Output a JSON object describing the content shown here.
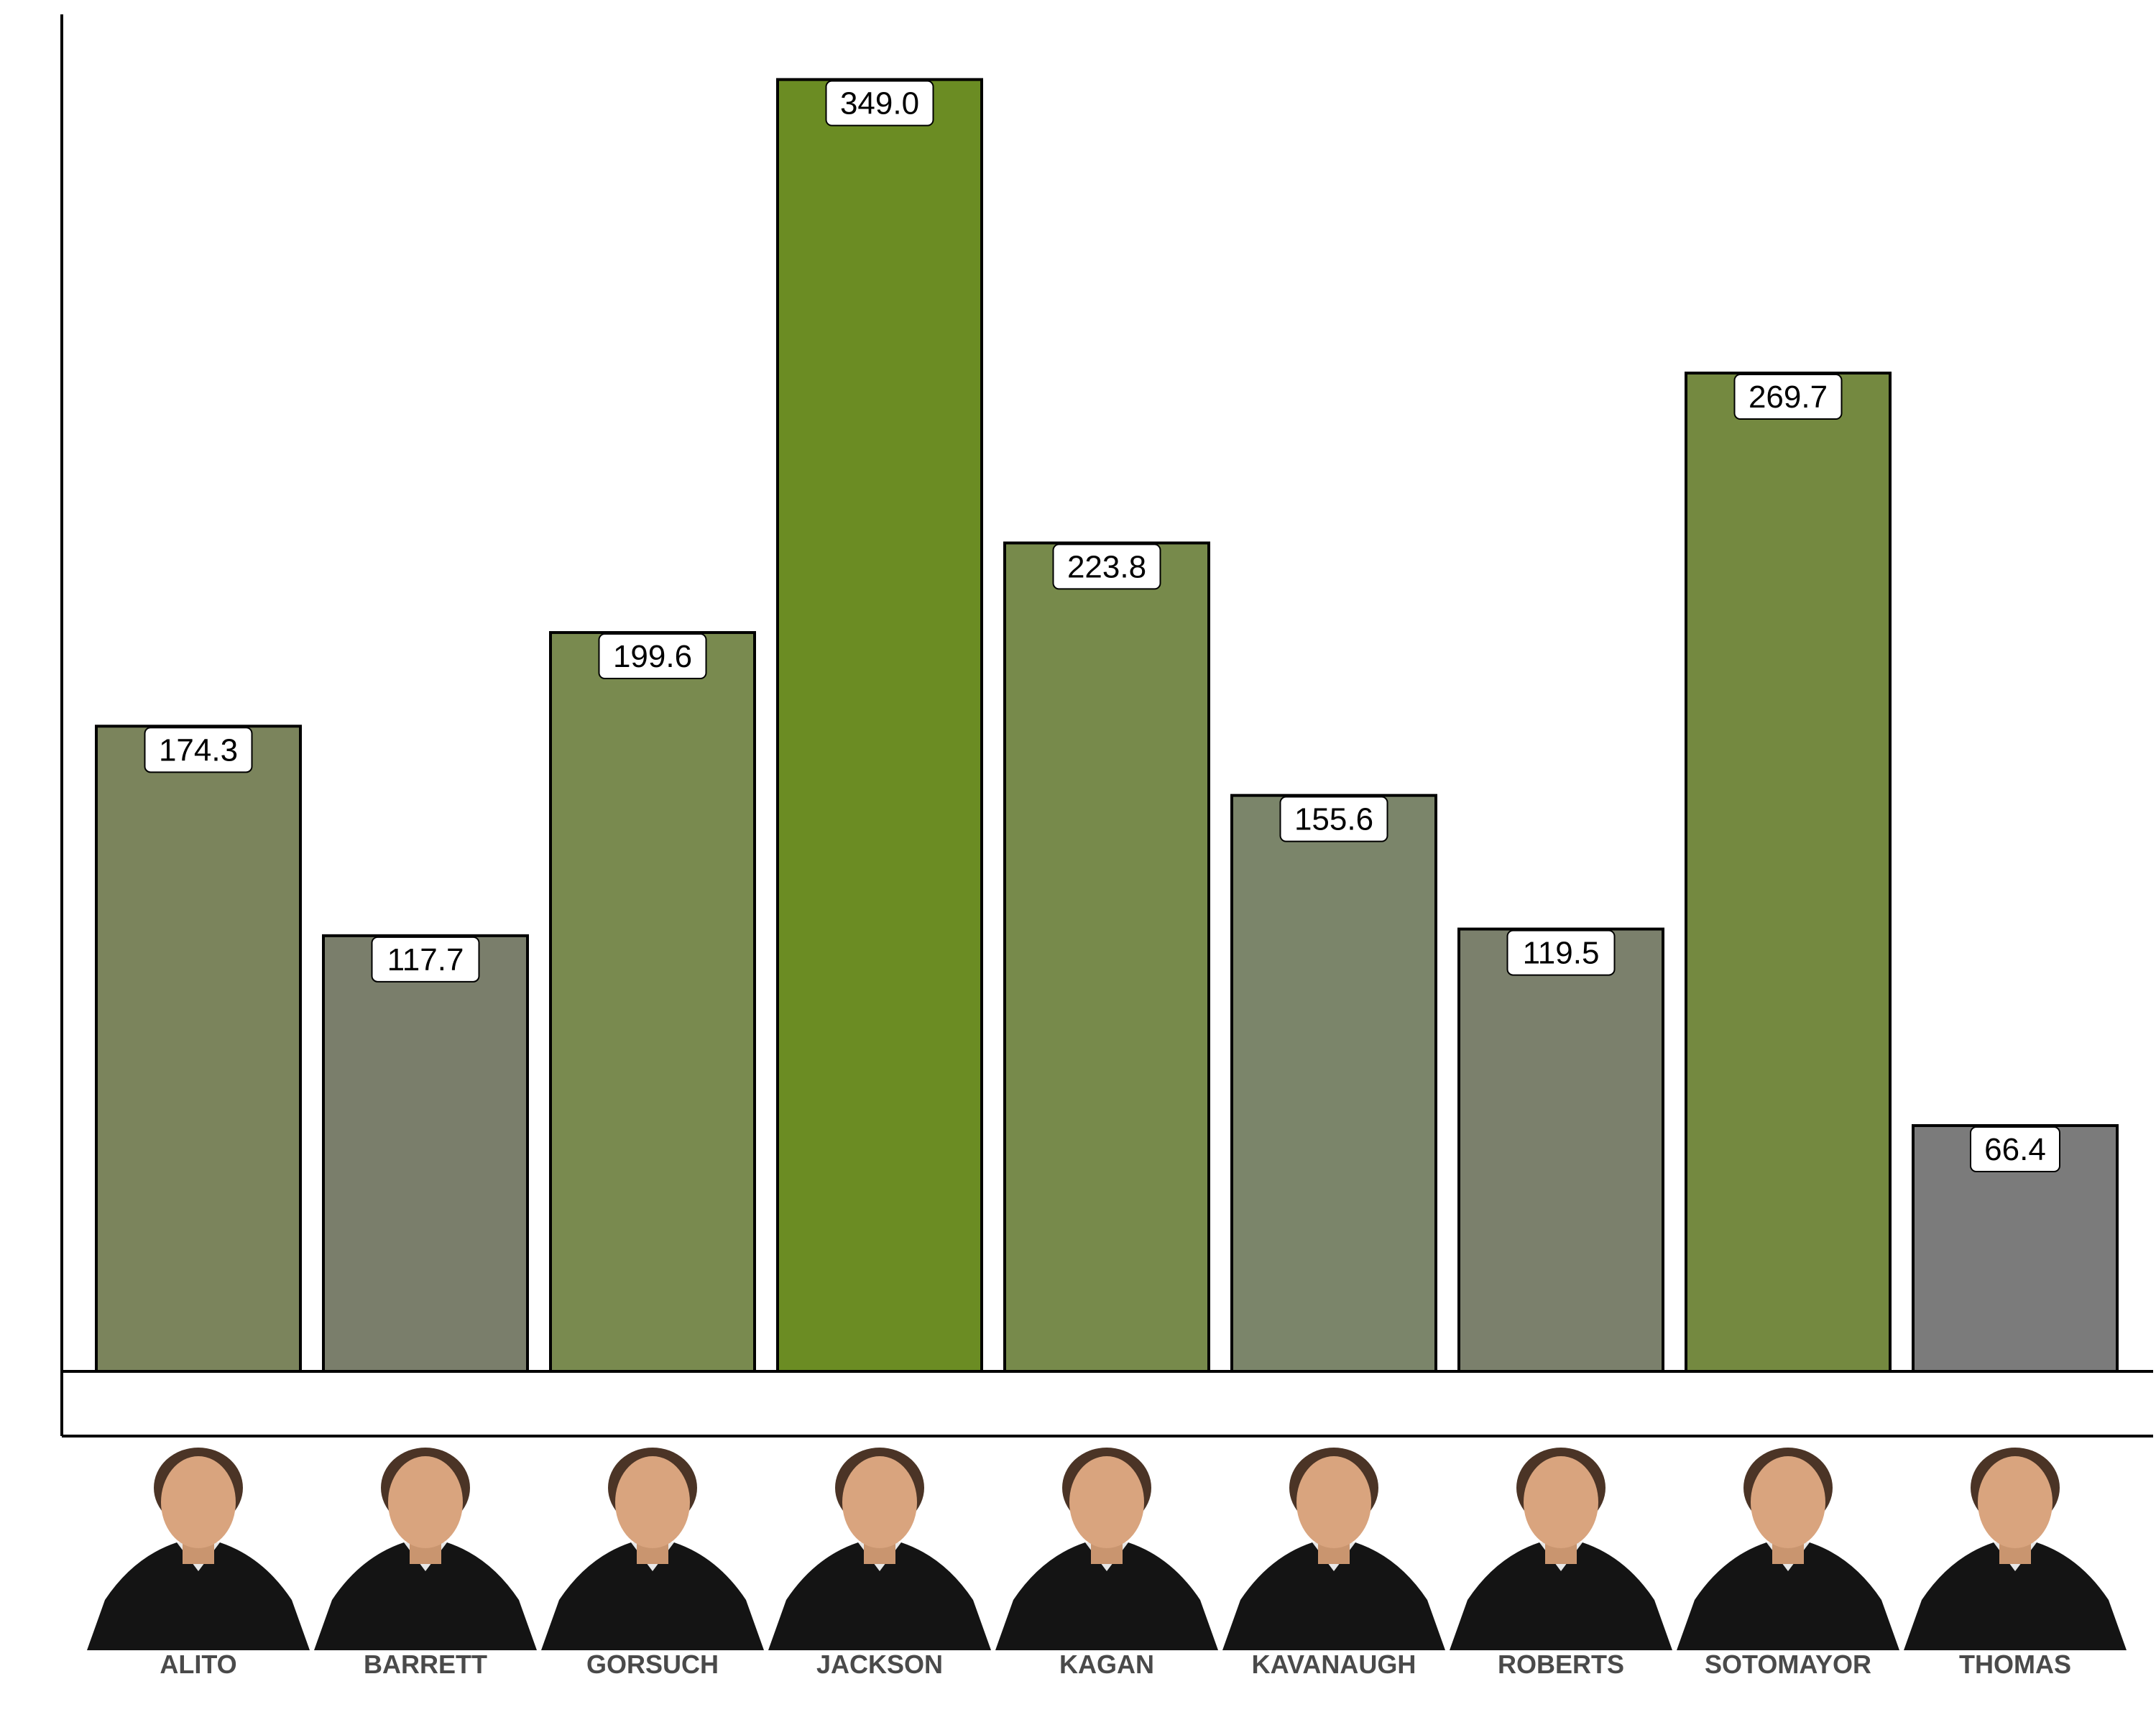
{
  "chart_data": {
    "type": "bar",
    "categories": [
      "ALITO",
      "BARRETT",
      "GORSUCH",
      "JACKSON",
      "KAGAN",
      "KAVANAUGH",
      "ROBERTS",
      "SOTOMAYOR",
      "THOMAS"
    ],
    "values": [
      174.3,
      117.7,
      199.6,
      349.0,
      223.8,
      155.6,
      119.5,
      269.7,
      66.4
    ],
    "value_labels": [
      "174.3",
      "117.7",
      "199.6",
      "349.0",
      "223.8",
      "155.6",
      "119.5",
      "269.7",
      "66.4"
    ],
    "colors": [
      "#7b845c",
      "#7a7e6b",
      "#798a4f",
      "#6b8c23",
      "#778a4b",
      "#7b856a",
      "#7b806c",
      "#748940",
      "#7b7b7b"
    ],
    "ylim": [
      0,
      360
    ],
    "title": "",
    "xlabel": "",
    "ylabel": "",
    "grid": false,
    "legend": "none",
    "portraits": [
      "portrait-icon",
      "portrait-icon",
      "portrait-icon",
      "portrait-icon",
      "portrait-icon",
      "portrait-icon",
      "portrait-icon",
      "portrait-icon",
      "portrait-icon"
    ]
  }
}
